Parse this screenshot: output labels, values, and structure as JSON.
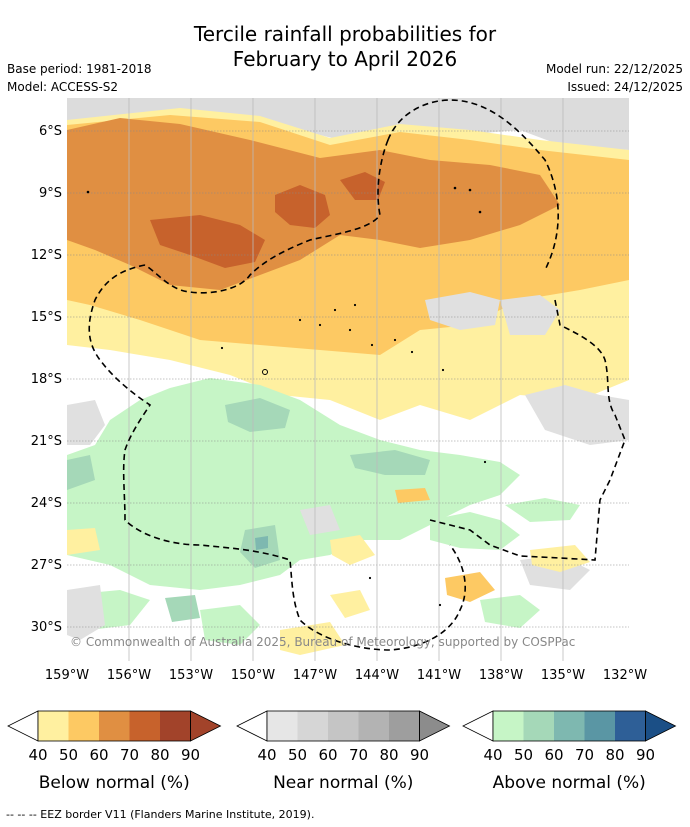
{
  "header": {
    "title_line1": "Tercile rainfall probabilities for",
    "title_line2": "February to April 2026",
    "base_period": "Base period: 1981-2018",
    "model": "Model: ACCESS-S2",
    "model_run": "Model run: 22/12/2025",
    "issued": "Issued: 24/12/2025"
  },
  "map": {
    "lat_labels": [
      "6°S",
      "9°S",
      "12°S",
      "15°S",
      "18°S",
      "21°S",
      "24°S",
      "27°S",
      "30°S"
    ],
    "lon_labels": [
      "159°W",
      "156°W",
      "153°W",
      "150°W",
      "147°W",
      "144°W",
      "141°W",
      "138°W",
      "135°W",
      "132°W"
    ],
    "credit": "© Commonwealth of Australia 2025, Bureau of Meteorology, supported by COSPPac"
  },
  "legends": [
    {
      "title": "Below normal (%)",
      "ticks": [
        "40",
        "50",
        "60",
        "70",
        "80",
        "90"
      ],
      "colors": [
        "#fff0a0",
        "#fdc963",
        "#e08f42",
        "#c7622c",
        "#a2432a",
        "#a2432a"
      ]
    },
    {
      "title": "Near normal (%)",
      "ticks": [
        "40",
        "50",
        "60",
        "70",
        "80",
        "90"
      ],
      "colors": [
        "#e6e6e6",
        "#d6d6d6",
        "#c5c5c5",
        "#b3b3b3",
        "#9e9e9e",
        "#8c8c8c"
      ]
    },
    {
      "title": "Above normal (%)",
      "ticks": [
        "40",
        "50",
        "60",
        "70",
        "80",
        "90"
      ],
      "colors": [
        "#c6f5c6",
        "#a5d8b8",
        "#7eb8b0",
        "#5a96a4",
        "#2e5f97",
        "#1b4f86"
      ]
    }
  ],
  "footer": {
    "eez_note": "--  --  -- EEZ border V11 (Flanders Marine Institute, 2019)."
  }
}
